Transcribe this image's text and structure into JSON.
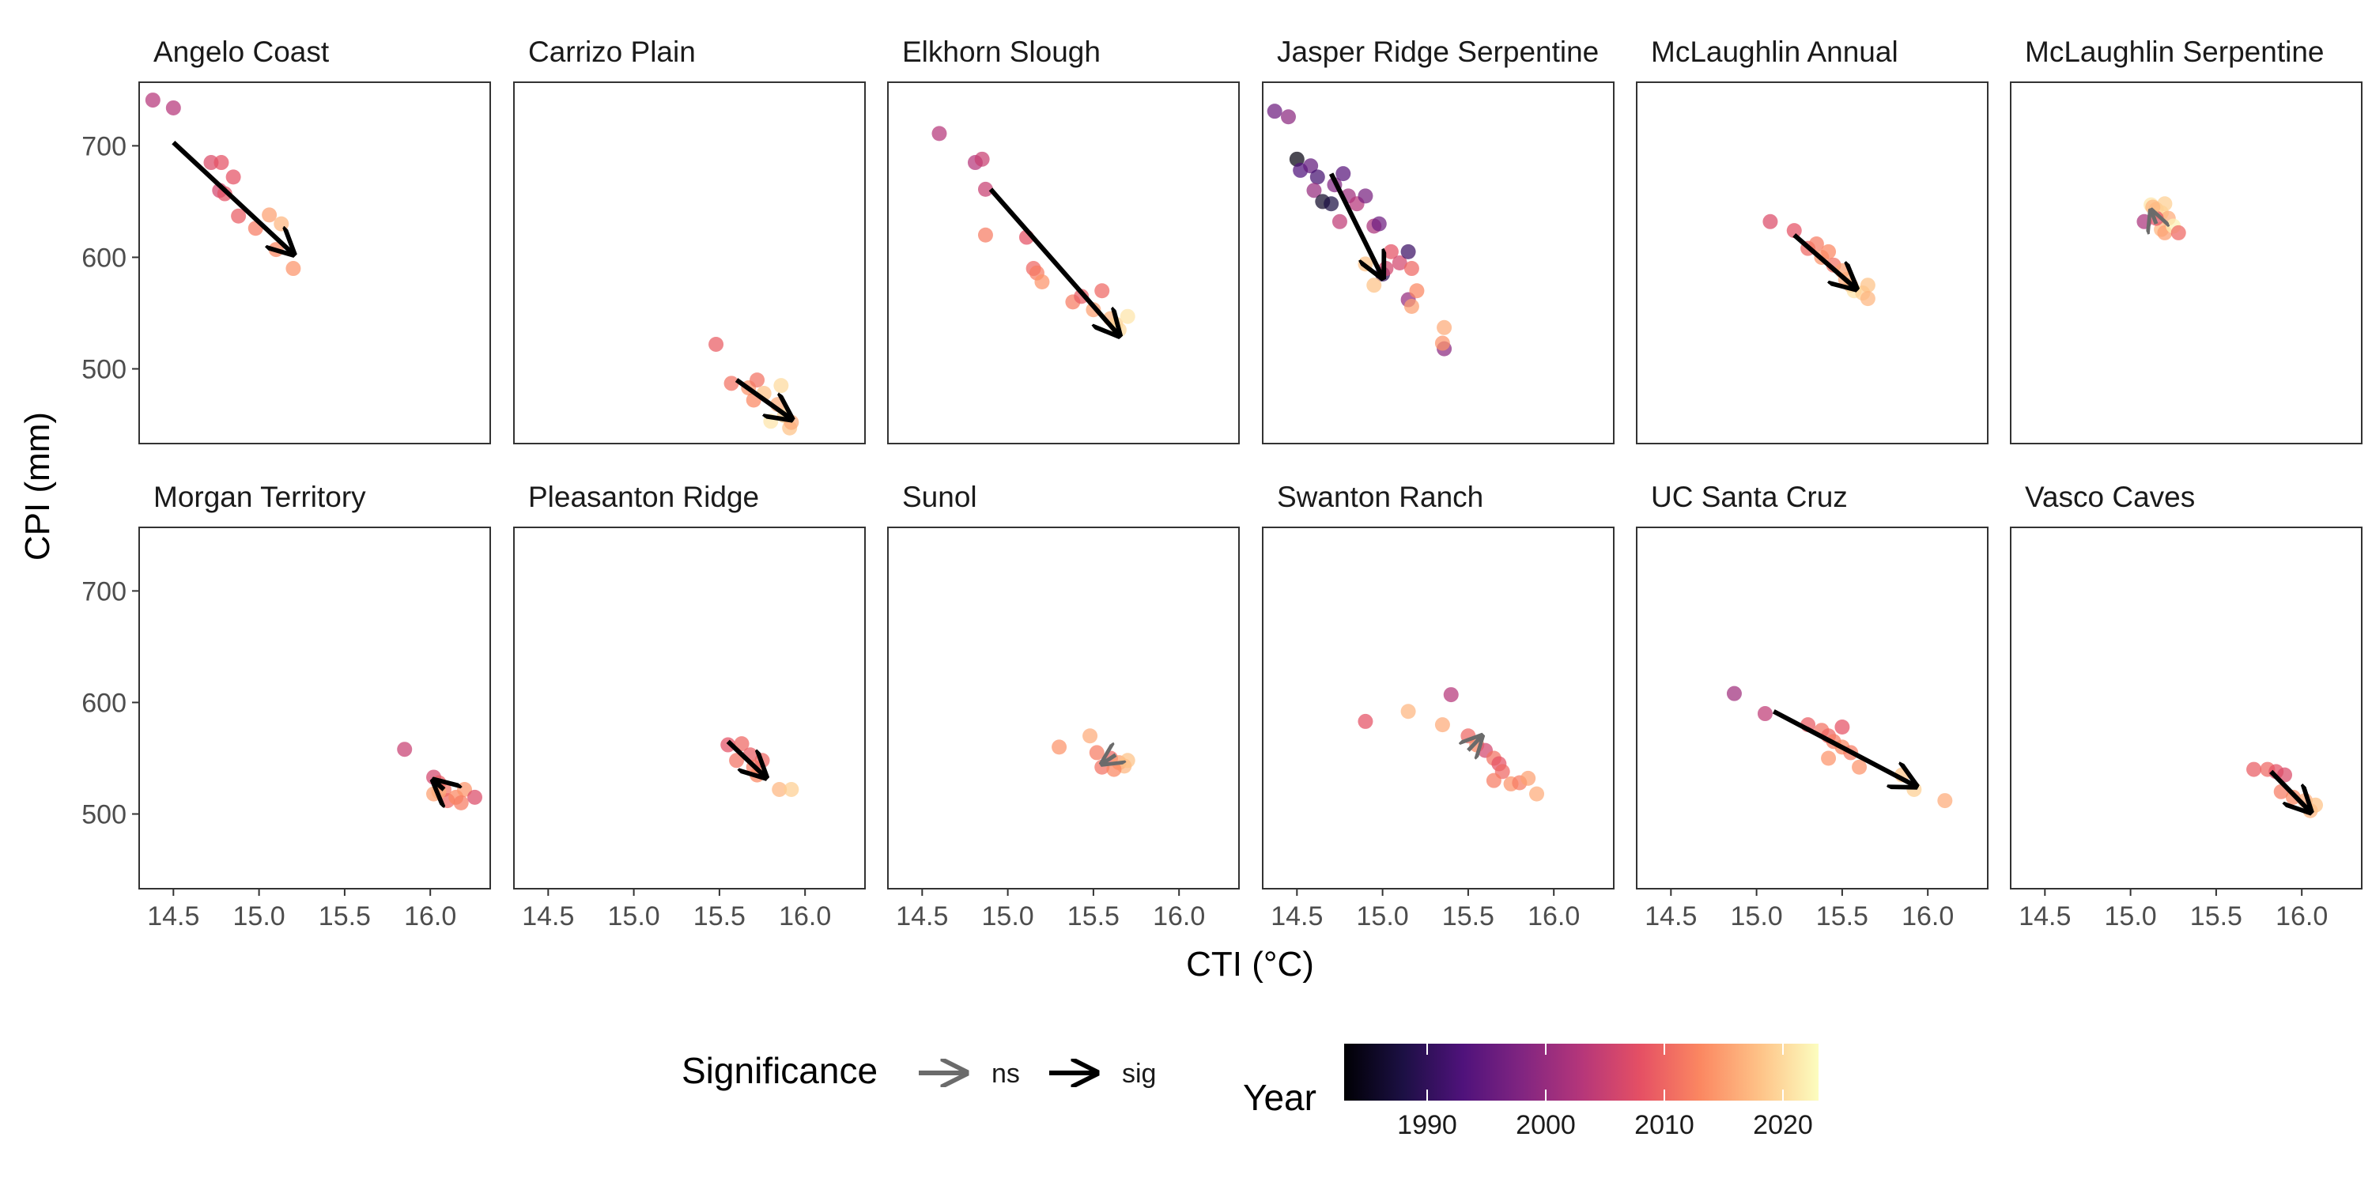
{
  "chart_data": {
    "type": "scatter",
    "xlabel": "CTI (°C)",
    "ylabel": "CPI (mm)",
    "xlim": [
      14.3,
      16.35
    ],
    "ylim": [
      433,
      757
    ],
    "xticks": [
      14.5,
      15.0,
      15.5,
      16.0
    ],
    "xtick_labels": [
      "14.5",
      "15.0",
      "15.5",
      "16.0"
    ],
    "yticks": [
      500,
      600,
      700
    ],
    "ytick_labels": [
      "500",
      "600",
      "700"
    ],
    "grid": false,
    "facet_layout": {
      "rows": 2,
      "cols": 6
    },
    "colorbar": {
      "title": "Year",
      "palette": "magma",
      "range": [
        1983,
        2023
      ],
      "ticks": [
        1990,
        2000,
        2010,
        2020
      ],
      "tick_labels": [
        "1990",
        "2000",
        "2010",
        "2020"
      ]
    },
    "significance_legend": {
      "title": "Significance",
      "items": [
        {
          "label": "ns",
          "color": "#6b6b6b"
        },
        {
          "label": "sig",
          "color": "#000000"
        }
      ]
    },
    "facets": [
      {
        "title": "Angelo Coast",
        "arrow": {
          "from": [
            14.5,
            703
          ],
          "to": [
            15.2,
            603
          ],
          "sig": "sig"
        },
        "points": [
          [
            14.38,
            741,
            2003
          ],
          [
            14.5,
            734,
            2003
          ],
          [
            14.72,
            685,
            2007
          ],
          [
            14.78,
            685,
            2008
          ],
          [
            14.85,
            672,
            2008
          ],
          [
            14.77,
            660,
            2006
          ],
          [
            14.8,
            657,
            2008
          ],
          [
            14.88,
            637,
            2009
          ],
          [
            14.98,
            626,
            2012
          ],
          [
            15.06,
            638,
            2015
          ],
          [
            15.13,
            630,
            2017
          ],
          [
            15.1,
            607,
            2013
          ],
          [
            15.2,
            590,
            2014
          ]
        ]
      },
      {
        "title": "Carrizo Plain",
        "arrow": {
          "from": [
            15.6,
            490
          ],
          "to": [
            15.92,
            455
          ],
          "sig": "sig"
        },
        "points": [
          [
            15.48,
            522,
            2009
          ],
          [
            15.57,
            487,
            2011
          ],
          [
            15.67,
            483,
            2014
          ],
          [
            15.72,
            490,
            2011
          ],
          [
            15.7,
            472,
            2013
          ],
          [
            15.76,
            478,
            2018
          ],
          [
            15.84,
            468,
            2016
          ],
          [
            15.86,
            485,
            2020
          ],
          [
            15.8,
            453,
            2021
          ],
          [
            15.88,
            458,
            2019
          ],
          [
            15.91,
            447,
            2018
          ],
          [
            15.92,
            452,
            2016
          ]
        ]
      },
      {
        "title": "Elkhorn Slough",
        "arrow": {
          "from": [
            14.9,
            661
          ],
          "to": [
            15.65,
            530
          ],
          "sig": "sig"
        },
        "points": [
          [
            14.6,
            711,
            2003
          ],
          [
            14.81,
            685,
            2003
          ],
          [
            14.85,
            688,
            2005
          ],
          [
            14.87,
            661,
            2005
          ],
          [
            14.87,
            620,
            2012
          ],
          [
            15.11,
            618,
            2008
          ],
          [
            15.15,
            590,
            2010
          ],
          [
            15.17,
            586,
            2012
          ],
          [
            15.2,
            578,
            2014
          ],
          [
            15.38,
            560,
            2012
          ],
          [
            15.43,
            565,
            2009
          ],
          [
            15.55,
            570,
            2010
          ],
          [
            15.5,
            553,
            2015
          ],
          [
            15.6,
            545,
            2017
          ],
          [
            15.63,
            540,
            2019
          ],
          [
            15.65,
            535,
            2020
          ],
          [
            15.7,
            547,
            2021
          ]
        ]
      },
      {
        "title": "Jasper Ridge Serpentine",
        "arrow": {
          "from": [
            14.7,
            675
          ],
          "to": [
            15.0,
            582
          ],
          "sig": "sig"
        },
        "points": [
          [
            14.37,
            731,
            1996
          ],
          [
            14.45,
            726,
            1999
          ],
          [
            14.5,
            688,
            1984
          ],
          [
            14.52,
            678,
            1993
          ],
          [
            14.58,
            682,
            1995
          ],
          [
            14.62,
            672,
            1992
          ],
          [
            14.6,
            660,
            2000
          ],
          [
            14.65,
            650,
            1986
          ],
          [
            14.7,
            648,
            1988
          ],
          [
            14.72,
            665,
            1998
          ],
          [
            14.77,
            675,
            1994
          ],
          [
            14.8,
            655,
            2001
          ],
          [
            14.85,
            648,
            2003
          ],
          [
            14.75,
            632,
            2004
          ],
          [
            14.9,
            655,
            1997
          ],
          [
            14.95,
            628,
            2002
          ],
          [
            14.98,
            630,
            1996
          ],
          [
            15.0,
            585,
            1990
          ],
          [
            15.02,
            590,
            2006
          ],
          [
            15.05,
            605,
            2008
          ],
          [
            15.1,
            595,
            2006
          ],
          [
            15.15,
            605,
            1991
          ],
          [
            15.17,
            590,
            2010
          ],
          [
            15.15,
            562,
            2000
          ],
          [
            15.2,
            570,
            2013
          ],
          [
            15.17,
            556,
            2015
          ],
          [
            14.9,
            594,
            2018
          ],
          [
            14.95,
            575,
            2018
          ],
          [
            15.36,
            537,
            2016
          ],
          [
            15.36,
            518,
            1999
          ],
          [
            15.35,
            523,
            2014
          ]
        ]
      },
      {
        "title": "McLaughlin Annual",
        "arrow": {
          "from": [
            15.22,
            620
          ],
          "to": [
            15.58,
            572
          ],
          "sig": "sig"
        },
        "points": [
          [
            15.08,
            632,
            2007
          ],
          [
            15.22,
            624,
            2008
          ],
          [
            15.3,
            608,
            2010
          ],
          [
            15.35,
            612,
            2012
          ],
          [
            15.38,
            600,
            2014
          ],
          [
            15.42,
            605,
            2013
          ],
          [
            15.45,
            593,
            2011
          ],
          [
            15.5,
            588,
            2015
          ],
          [
            15.52,
            580,
            2016
          ],
          [
            15.55,
            575,
            2017
          ],
          [
            15.57,
            570,
            2021
          ],
          [
            15.62,
            568,
            2019
          ],
          [
            15.65,
            575,
            2018
          ],
          [
            15.65,
            563,
            2017
          ]
        ]
      },
      {
        "title": "McLaughlin Serpentine",
        "arrow": {
          "from": [
            15.15,
            630
          ],
          "to": [
            15.12,
            642
          ],
          "sig": "ns"
        },
        "points": [
          [
            15.08,
            632,
            2002
          ],
          [
            15.12,
            647,
            2021
          ],
          [
            15.15,
            643,
            2018
          ],
          [
            15.18,
            640,
            2020
          ],
          [
            15.2,
            648,
            2019
          ],
          [
            15.22,
            635,
            2016
          ],
          [
            15.18,
            625,
            2017
          ],
          [
            15.2,
            622,
            2015
          ],
          [
            15.25,
            628,
            2022
          ],
          [
            15.28,
            622,
            2010
          ],
          [
            15.15,
            635,
            2008
          ],
          [
            15.13,
            645,
            2017
          ]
        ]
      },
      {
        "title": "Morgan Territory",
        "arrow": {
          "from": [
            16.08,
            522
          ],
          "to": [
            16.02,
            530
          ],
          "sig": "sig"
        },
        "points": [
          [
            15.85,
            558,
            2005
          ],
          [
            16.02,
            533,
            2006
          ],
          [
            16.05,
            528,
            2009
          ],
          [
            16.08,
            522,
            2011
          ],
          [
            16.02,
            518,
            2015
          ],
          [
            16.1,
            512,
            2010
          ],
          [
            16.15,
            515,
            2013
          ],
          [
            16.2,
            522,
            2014
          ],
          [
            16.18,
            510,
            2012
          ],
          [
            16.26,
            515,
            2007
          ],
          [
            16.05,
            520,
            2016
          ]
        ]
      },
      {
        "title": "Pleasanton Ridge",
        "arrow": {
          "from": [
            15.55,
            565
          ],
          "to": [
            15.77,
            533
          ],
          "sig": "sig"
        },
        "points": [
          [
            15.55,
            562,
            2008
          ],
          [
            15.6,
            548,
            2011
          ],
          [
            15.63,
            563,
            2010
          ],
          [
            15.68,
            553,
            2009
          ],
          [
            15.7,
            542,
            2012
          ],
          [
            15.72,
            535,
            2013
          ],
          [
            15.75,
            548,
            2010
          ],
          [
            15.85,
            522,
            2017
          ],
          [
            15.92,
            522,
            2019
          ]
        ]
      },
      {
        "title": "Sunol",
        "arrow": {
          "from": [
            15.63,
            553
          ],
          "to": [
            15.55,
            545
          ],
          "sig": "ns"
        },
        "points": [
          [
            15.3,
            560,
            2014
          ],
          [
            15.48,
            570,
            2016
          ],
          [
            15.52,
            555,
            2012
          ],
          [
            15.55,
            542,
            2011
          ],
          [
            15.6,
            550,
            2010
          ],
          [
            15.65,
            546,
            2015
          ],
          [
            15.68,
            543,
            2017
          ],
          [
            15.7,
            548,
            2018
          ],
          [
            15.62,
            540,
            2013
          ]
        ]
      },
      {
        "title": "Swanton Ranch",
        "arrow": {
          "from": [
            15.5,
            557
          ],
          "to": [
            15.58,
            570
          ],
          "sig": "ns"
        },
        "points": [
          [
            14.9,
            583,
            2008
          ],
          [
            15.15,
            592,
            2017
          ],
          [
            15.35,
            580,
            2016
          ],
          [
            15.4,
            607,
            2003
          ],
          [
            15.5,
            570,
            2010
          ],
          [
            15.55,
            562,
            2013
          ],
          [
            15.6,
            557,
            2006
          ],
          [
            15.65,
            550,
            2011
          ],
          [
            15.68,
            545,
            2008
          ],
          [
            15.7,
            538,
            2010
          ],
          [
            15.75,
            527,
            2014
          ],
          [
            15.8,
            528,
            2012
          ],
          [
            15.85,
            532,
            2015
          ],
          [
            15.9,
            518,
            2016
          ],
          [
            15.65,
            530,
            2012
          ]
        ]
      },
      {
        "title": "UC Santa Cruz",
        "arrow": {
          "from": [
            15.1,
            592
          ],
          "to": [
            15.93,
            525
          ],
          "sig": "sig"
        },
        "points": [
          [
            14.87,
            608,
            2001
          ],
          [
            15.05,
            590,
            2004
          ],
          [
            15.3,
            580,
            2009
          ],
          [
            15.38,
            575,
            2011
          ],
          [
            15.42,
            570,
            2010
          ],
          [
            15.45,
            565,
            2012
          ],
          [
            15.5,
            560,
            2013
          ],
          [
            15.55,
            555,
            2012
          ],
          [
            15.6,
            542,
            2014
          ],
          [
            15.42,
            550,
            2014
          ],
          [
            15.85,
            535,
            2018
          ],
          [
            15.92,
            522,
            2019
          ],
          [
            16.1,
            512,
            2016
          ],
          [
            15.5,
            578,
            2008
          ]
        ]
      },
      {
        "title": "Vasco Caves",
        "arrow": {
          "from": [
            15.82,
            538
          ],
          "to": [
            16.05,
            502
          ],
          "sig": "sig"
        },
        "points": [
          [
            15.72,
            540,
            2009
          ],
          [
            15.8,
            540,
            2010
          ],
          [
            15.85,
            538,
            2008
          ],
          [
            15.9,
            535,
            2007
          ],
          [
            15.88,
            520,
            2012
          ],
          [
            15.95,
            515,
            2013
          ],
          [
            16.02,
            512,
            2016
          ],
          [
            16.05,
            503,
            2017
          ],
          [
            16.08,
            508,
            2018
          ]
        ]
      }
    ]
  }
}
